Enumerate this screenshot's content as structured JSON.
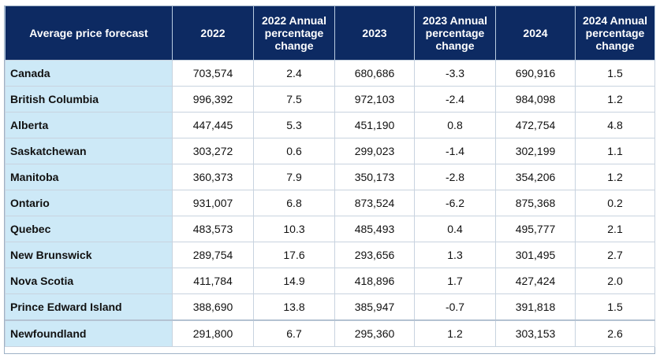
{
  "table": {
    "headers": [
      "Average price forecast",
      "2022",
      "2022 Annual percentage change",
      "2023",
      "2023 Annual percentage change",
      "2024",
      "2024 Annual percentage change"
    ],
    "rows": [
      [
        "Canada",
        "703,574",
        "2.4",
        "680,686",
        "-3.3",
        "690,916",
        "1.5"
      ],
      [
        "British Columbia",
        "996,392",
        "7.5",
        "972,103",
        "-2.4",
        "984,098",
        "1.2"
      ],
      [
        "Alberta",
        "447,445",
        "5.3",
        "451,190",
        "0.8",
        "472,754",
        "4.8"
      ],
      [
        "Saskatchewan",
        "303,272",
        "0.6",
        "299,023",
        "-1.4",
        "302,199",
        "1.1"
      ],
      [
        "Manitoba",
        "360,373",
        "7.9",
        "350,173",
        "-2.8",
        "354,206",
        "1.2"
      ],
      [
        "Ontario",
        "931,007",
        "6.8",
        "873,524",
        "-6.2",
        "875,368",
        "0.2"
      ],
      [
        "Quebec",
        "483,573",
        "10.3",
        "485,493",
        "0.4",
        "495,777",
        "2.1"
      ],
      [
        "New Brunswick",
        "289,754",
        "17.6",
        "293,656",
        "1.3",
        "301,495",
        "2.7"
      ],
      [
        "Nova Scotia",
        "411,784",
        "14.9",
        "418,896",
        "1.7",
        "427,424",
        "2.0"
      ],
      [
        "Prince Edward Island",
        "388,690",
        "13.8",
        "385,947",
        "-0.7",
        "391,818",
        "1.5"
      ],
      [
        "Newfoundland",
        "291,800",
        "6.7",
        "295,360",
        "1.2",
        "303,153",
        "2.6"
      ]
    ]
  },
  "colors": {
    "header_bg": "#0d2a62",
    "header_text": "#ffffff",
    "region_bg": "#cde9f7",
    "cell_bg": "#ffffff"
  }
}
